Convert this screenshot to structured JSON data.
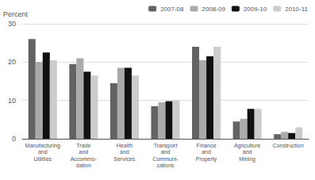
{
  "chart_data": {
    "type": "bar",
    "categories": [
      "Manufacturing\nand\nUtilities",
      "Trade\nand\nAccommo-\ndation",
      "Health\nand\nServices",
      "Transport\nand\nCommuni-\ncations",
      "Finance\nand\nProperty",
      "Agriculture\nand\nMining",
      "Construction"
    ],
    "series": [
      {
        "name": "2007-08",
        "color": "#636363",
        "values": [
          26,
          19.5,
          14.5,
          8.5,
          24,
          4.5,
          1.2
        ]
      },
      {
        "name": "2008-09",
        "color": "#aaaaaa",
        "values": [
          20,
          21,
          18.5,
          9.5,
          20.5,
          5.2,
          1.8
        ]
      },
      {
        "name": "2009-10",
        "color": "#111111",
        "values": [
          22.5,
          17.5,
          18.5,
          9.8,
          21.5,
          7.8,
          1.5
        ]
      },
      {
        "name": "2010-11",
        "color": "#cccccc",
        "values": [
          20.5,
          16.5,
          16.5,
          10,
          24,
          7.8,
          3
        ]
      }
    ],
    "ylabel": "Percent",
    "ylim": [
      0,
      30
    ],
    "yticks": [
      0,
      10,
      20,
      30
    ],
    "grid": true,
    "legend": "upper right"
  }
}
